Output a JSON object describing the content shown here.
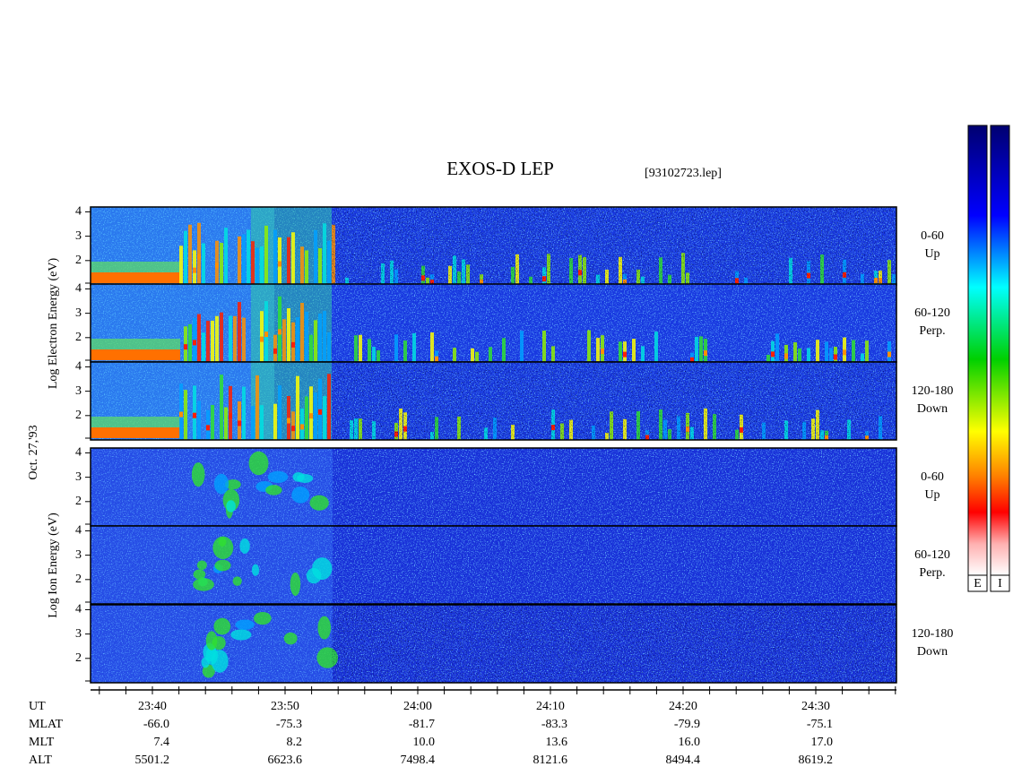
{
  "title": "EXOS-D LEP",
  "file": "[93102723.lep]",
  "date": "Oct. 27,'93",
  "energy_axis": {
    "ylim": [
      1,
      4.2
    ],
    "yticks": [
      2,
      3,
      4
    ]
  },
  "groups": [
    {
      "label": "Log Electron Energy (eV)",
      "panels": [
        {
          "angle": "0-60",
          "mode": "Up"
        },
        {
          "angle": "60-120",
          "mode": "Perp."
        },
        {
          "angle": "120-180",
          "mode": "Down"
        }
      ]
    },
    {
      "label": "Log Ion Energy (eV)",
      "panels": [
        {
          "angle": "0-60",
          "mode": "Up"
        },
        {
          "angle": "60-120",
          "mode": "Perp."
        },
        {
          "angle": "120-180",
          "mode": "Down"
        }
      ]
    }
  ],
  "colorbars": [
    "E",
    "I"
  ],
  "footer": {
    "rows": [
      {
        "name": "UT",
        "values": [
          "23:40",
          "23:50",
          "24:00",
          "24:10",
          "24:20",
          "24:30"
        ]
      },
      {
        "name": "MLAT",
        "values": [
          "-66.0",
          "-75.3",
          "-81.7",
          "-83.3",
          "-79.9",
          "-75.1"
        ]
      },
      {
        "name": "MLT",
        "values": [
          "7.4",
          "8.2",
          "10.0",
          "13.6",
          "16.0",
          "17.0"
        ]
      },
      {
        "name": "ALT",
        "values": [
          "5501.2",
          "6623.6",
          "7498.4",
          "8121.6",
          "8494.4",
          "8619.2"
        ]
      }
    ]
  }
}
